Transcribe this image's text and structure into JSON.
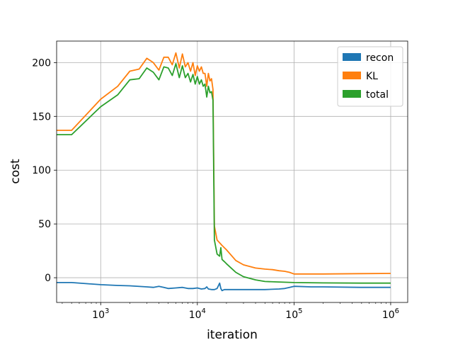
{
  "chart_data": {
    "type": "line",
    "title": "",
    "xlabel": "iteration",
    "ylabel": "cost",
    "xscale": "log",
    "xlim": [
      350,
      1500000
    ],
    "ylim": [
      -23,
      220
    ],
    "grid": true,
    "legend_position": "top-right",
    "x_ticks": [
      {
        "value": 1000,
        "base": "10",
        "exp": "3"
      },
      {
        "value": 10000,
        "base": "10",
        "exp": "4"
      },
      {
        "value": 100000,
        "base": "10",
        "exp": "5"
      },
      {
        "value": 1000000,
        "base": "10",
        "exp": "6"
      }
    ],
    "y_ticks": [
      {
        "value": 0,
        "label": "0"
      },
      {
        "value": 50,
        "label": "50"
      },
      {
        "value": 100,
        "label": "100"
      },
      {
        "value": 150,
        "label": "150"
      },
      {
        "value": 200,
        "label": "200"
      }
    ],
    "series": [
      {
        "name": "recon",
        "color": "#1f77b4",
        "x": [
          350,
          500,
          1000,
          1500,
          2000,
          3000,
          3500,
          4000,
          4500,
          5000,
          6000,
          7000,
          8000,
          9000,
          10000,
          11000,
          12000,
          12500,
          13000,
          14000,
          15000,
          16000,
          17000,
          17500,
          18000,
          19000,
          20000,
          30000,
          50000,
          70000,
          80000,
          90000,
          100000,
          150000,
          200000,
          500000,
          1000000
        ],
        "y": [
          -4.5,
          -4.5,
          -6.5,
          -7.2,
          -7.5,
          -8.5,
          -9,
          -8,
          -9,
          -10,
          -9.5,
          -9,
          -10,
          -10,
          -9.5,
          -10.5,
          -10,
          -8.5,
          -10.5,
          -11,
          -11,
          -10,
          -5,
          -10,
          -12,
          -11,
          -11,
          -11,
          -11,
          -10.5,
          -10,
          -9,
          -8,
          -8.5,
          -8.5,
          -9,
          -9
        ]
      },
      {
        "name": "KL",
        "color": "#ff7f0e",
        "x": [
          350,
          500,
          1000,
          1500,
          2000,
          2500,
          3000,
          3500,
          4000,
          4500,
          5000,
          5500,
          6000,
          6500,
          7000,
          7500,
          8000,
          8500,
          9000,
          9500,
          10000,
          10500,
          11000,
          11500,
          12000,
          12500,
          13000,
          13500,
          14000,
          14500,
          15000,
          16000,
          18000,
          20000,
          25000,
          30000,
          40000,
          50000,
          60000,
          70000,
          80000,
          90000,
          100000,
          200000,
          500000,
          1000000
        ],
        "y": [
          137,
          137,
          166,
          178,
          192,
          194,
          204,
          200,
          193,
          205,
          205,
          198,
          209,
          195,
          208,
          196,
          200,
          192,
          200,
          188,
          197,
          192,
          196,
          190,
          190,
          178,
          190,
          183,
          185,
          175,
          48,
          35,
          30,
          26,
          16,
          12,
          9,
          8,
          7.5,
          6.5,
          6,
          5,
          3.5,
          3.5,
          3.8,
          4
        ]
      },
      {
        "name": "total",
        "color": "#2ca02c",
        "x": [
          350,
          500,
          1000,
          1500,
          2000,
          2500,
          3000,
          3500,
          4000,
          4500,
          5000,
          5500,
          6000,
          6500,
          7000,
          7500,
          8000,
          8500,
          9000,
          9500,
          10000,
          10500,
          11000,
          11500,
          12000,
          12500,
          13000,
          13500,
          14000,
          14500,
          15000,
          16000,
          17000,
          17500,
          18000,
          19000,
          20000,
          25000,
          30000,
          40000,
          50000,
          70000,
          100000,
          200000,
          500000,
          1000000
        ],
        "y": [
          133,
          133,
          159,
          170,
          184,
          185,
          195,
          191,
          184,
          196,
          195,
          188,
          199,
          186,
          197,
          186,
          190,
          182,
          189,
          180,
          187,
          180,
          184,
          178,
          180,
          168,
          178,
          172,
          173,
          165,
          35,
          22,
          20,
          28,
          17,
          15,
          13,
          5,
          1,
          -2,
          -3.5,
          -4,
          -4.5,
          -4.8,
          -5,
          -5
        ]
      }
    ]
  }
}
